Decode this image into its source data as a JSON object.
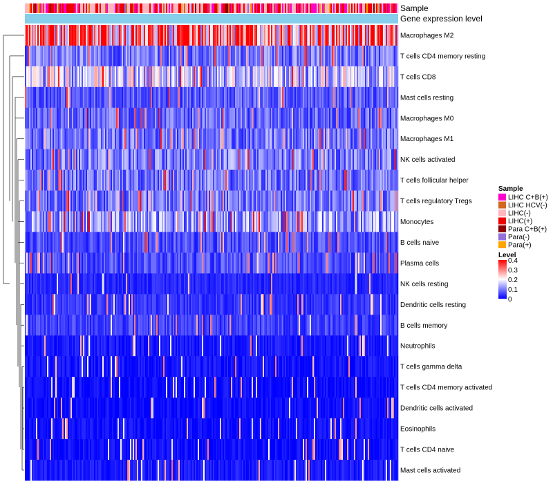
{
  "chart_data": {
    "type": "heatmap",
    "title": "",
    "annotation_rows": [
      {
        "name": "Sample"
      },
      {
        "name": "Gene expression level"
      }
    ],
    "rows": [
      "Macrophages M2",
      "T cells CD4 memory resting",
      "T cells CD8",
      "Mast cells resting",
      "Macrophages M0",
      "Macrophages M1",
      "NK cells activated",
      "T cells follicular helper",
      "T cells regulatory  Tregs",
      "Monocytes",
      "B cells naive",
      "Plasma cells",
      "NK cells resting",
      "Dendritic cells resting",
      "B cells memory",
      "Neutrophils",
      "T cells gamma delta",
      "T cells CD4 memory activated",
      "Dendritic cells activated",
      "Eosinophils",
      "T cells CD4 naive",
      "Mast cells activated"
    ],
    "row_mean_levels": [
      0.3,
      0.09,
      0.16,
      0.07,
      0.08,
      0.09,
      0.1,
      0.09,
      0.09,
      0.12,
      0.06,
      0.06,
      0.03,
      0.04,
      0.05,
      0.02,
      0.015,
      0.01,
      0.01,
      0.01,
      0.01,
      0.02
    ],
    "sample_count": 270,
    "sample_legend": {
      "title": "Sample",
      "entries": [
        {
          "label": "LIHC C+B(+)",
          "color": "#ff00cc"
        },
        {
          "label": "LIHC HCV(-)",
          "color": "#d2691e"
        },
        {
          "label": "LIHC(-)",
          "color": "#ffb6c1"
        },
        {
          "label": "LIHC(+)",
          "color": "#ee0000"
        },
        {
          "label": "Para C+B(+)",
          "color": "#8b0000"
        },
        {
          "label": "Para(-)",
          "color": "#9370db"
        },
        {
          "label": "Para(+)",
          "color": "#ffa500"
        }
      ]
    },
    "expression_bar_color": "#87ceeb",
    "level_legend": {
      "title": "Level",
      "ticks": [
        "0.4",
        "0.3",
        "0.2",
        "0.1",
        "0"
      ],
      "tick_values": [
        0.4,
        0.3,
        0.2,
        0.1,
        0
      ],
      "range": [
        0,
        0.4
      ],
      "colors": [
        "#0000ff",
        "#ffffff",
        "#ff0000"
      ]
    }
  }
}
